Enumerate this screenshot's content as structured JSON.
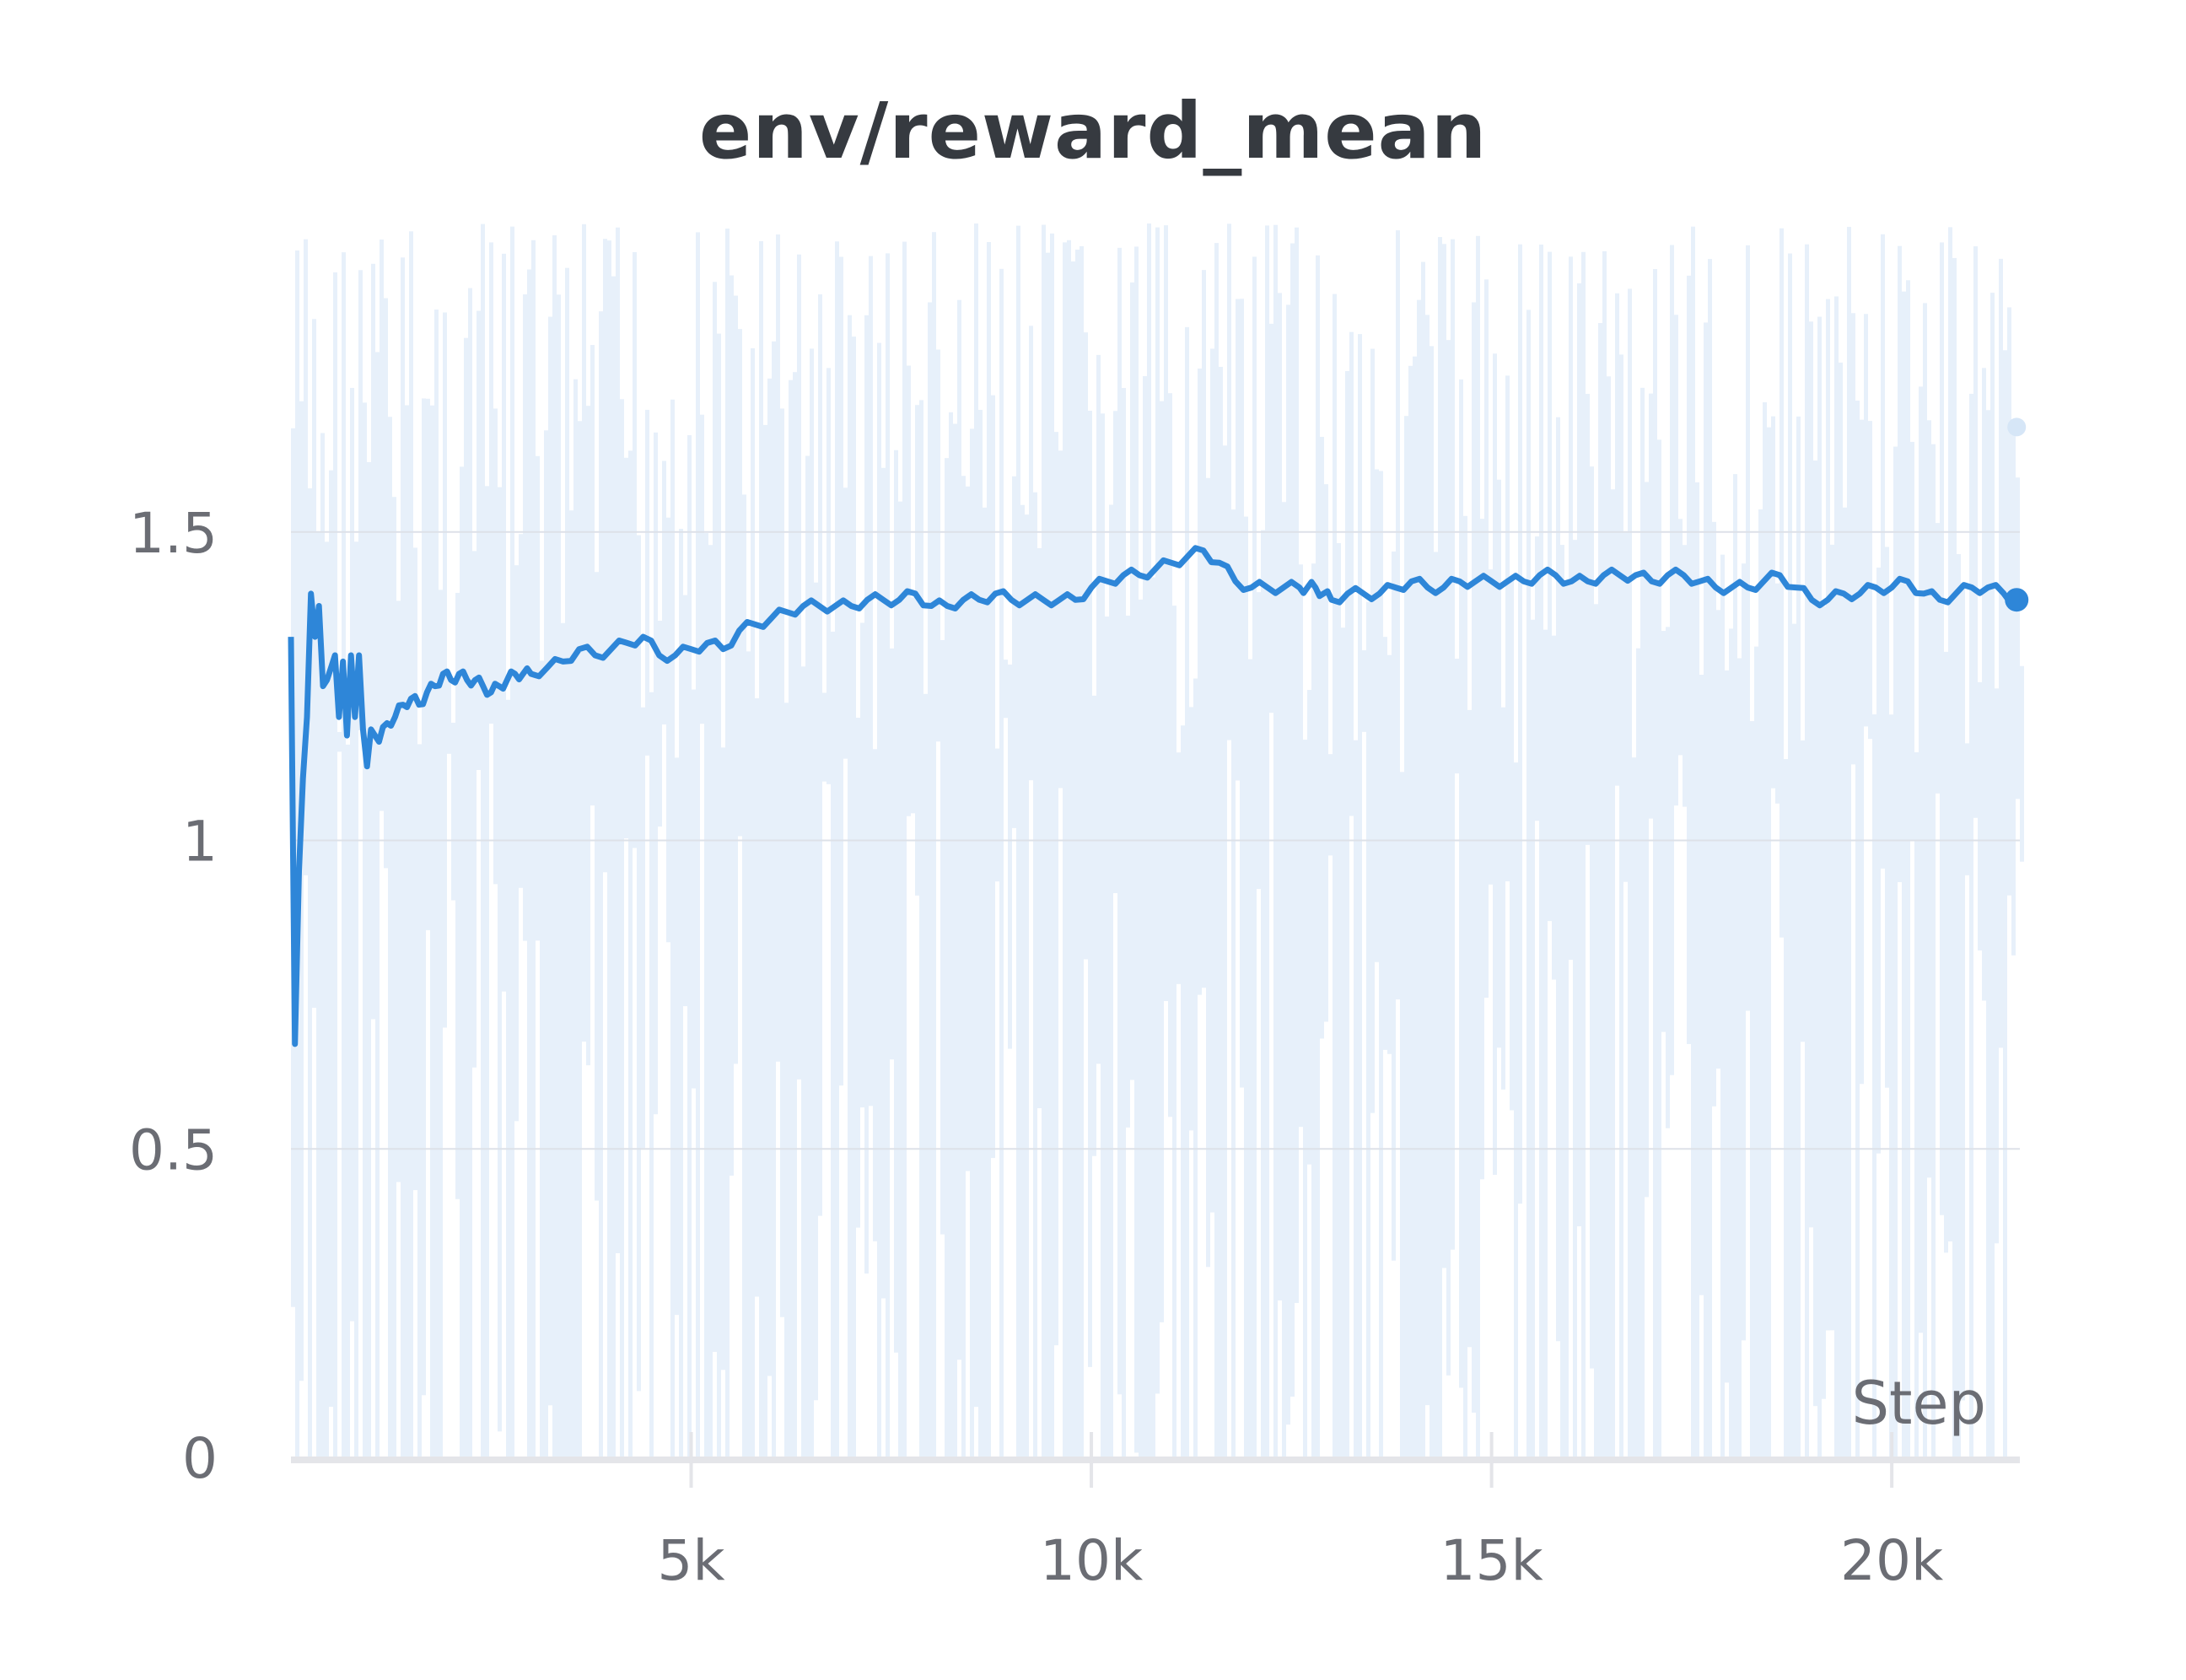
{
  "chart_data": {
    "type": "line",
    "title": "env/reward_mean",
    "xlabel": "Step",
    "ylabel": "",
    "xlim": [
      0,
      21600
    ],
    "ylim": [
      0,
      2.0
    ],
    "x_ticks": [
      {
        "value": 5000,
        "label": "5k"
      },
      {
        "value": 10000,
        "label": "10k"
      },
      {
        "value": 15000,
        "label": "15k"
      },
      {
        "value": 20000,
        "label": "20k"
      }
    ],
    "y_ticks": [
      {
        "value": 0,
        "label": "0"
      },
      {
        "value": 0.5,
        "label": "0.5"
      },
      {
        "value": 1,
        "label": "1"
      },
      {
        "value": 1.5,
        "label": "1.5"
      }
    ],
    "grid": true,
    "colors": {
      "smoothed": "#2e86d8",
      "raw": "#e7f0fa",
      "grid": "#dde1e8",
      "axis": "#e4e5e9"
    },
    "series": [
      {
        "role": "smoothed",
        "x": [
          0,
          50,
          100,
          150,
          200,
          250,
          300,
          350,
          400,
          450,
          500,
          550,
          600,
          650,
          700,
          750,
          800,
          850,
          900,
          950,
          1000,
          1100,
          1200,
          1300,
          1400,
          1500,
          1600,
          1700,
          1800,
          1900,
          2000,
          2100,
          2200,
          2300,
          2400,
          2500,
          2600,
          2700,
          2800,
          2900,
          3000,
          3200,
          3400,
          3600,
          3800,
          4000,
          4200,
          4400,
          4600,
          4800,
          5000,
          5200,
          5400,
          5600,
          5800,
          6000,
          6200,
          6400,
          6600,
          6800,
          7000,
          7200,
          7400,
          7600,
          7800,
          8000,
          8200,
          8400,
          8600,
          8800,
          9000,
          9200,
          9400,
          9600,
          9800,
          10000,
          10200,
          10400,
          10600,
          10800,
          11000,
          11200,
          11400,
          11600,
          11800,
          12000,
          12200,
          12400,
          12600,
          12700,
          12800,
          12900,
          13000,
          13200,
          13400,
          13600,
          13800,
          14000,
          14200,
          14400,
          14600,
          14800,
          15000,
          15200,
          15400,
          15600,
          15800,
          16000,
          16200,
          16400,
          16600,
          16800,
          17000,
          17200,
          17400,
          17600,
          17800,
          18000,
          18200,
          18400,
          18600,
          18800,
          19000,
          19200,
          19400,
          19600,
          19800,
          20000,
          20200,
          20400,
          20600,
          20800,
          21000,
          21200,
          21400,
          21560
        ],
        "y": [
          1.33,
          0.67,
          0.95,
          1.1,
          1.2,
          1.4,
          1.33,
          1.38,
          1.25,
          1.26,
          1.28,
          1.3,
          1.2,
          1.29,
          1.17,
          1.3,
          1.2,
          1.3,
          1.18,
          1.12,
          1.18,
          1.16,
          1.19,
          1.2,
          1.22,
          1.23,
          1.22,
          1.24,
          1.25,
          1.27,
          1.26,
          1.27,
          1.26,
          1.26,
          1.25,
          1.24,
          1.25,
          1.26,
          1.27,
          1.27,
          1.27,
          1.28,
          1.29,
          1.31,
          1.3,
          1.31,
          1.32,
          1.33,
          1.3,
          1.3,
          1.31,
          1.32,
          1.31,
          1.34,
          1.35,
          1.36,
          1.37,
          1.38,
          1.38,
          1.38,
          1.38,
          1.39,
          1.39,
          1.39,
          1.4,
          1.38,
          1.38,
          1.39,
          1.39,
          1.4,
          1.39,
          1.39,
          1.39,
          1.39,
          1.39,
          1.41,
          1.42,
          1.43,
          1.43,
          1.44,
          1.45,
          1.46,
          1.47,
          1.45,
          1.42,
          1.41,
          1.41,
          1.41,
          1.41,
          1.41,
          1.41,
          1.4,
          1.39,
          1.4,
          1.4,
          1.4,
          1.41,
          1.42,
          1.41,
          1.41,
          1.42,
          1.42,
          1.42,
          1.42,
          1.42,
          1.43,
          1.43,
          1.42,
          1.42,
          1.43,
          1.43,
          1.43,
          1.42,
          1.43,
          1.43,
          1.42,
          1.41,
          1.41,
          1.41,
          1.42,
          1.43,
          1.41,
          1.39,
          1.39,
          1.4,
          1.4,
          1.41,
          1.41,
          1.42,
          1.4,
          1.39,
          1.4,
          1.41,
          1.41,
          1.4,
          1.39
        ]
      },
      {
        "role": "raw",
        "min": 0,
        "max": 2.0,
        "last_value": 1.67
      }
    ]
  }
}
